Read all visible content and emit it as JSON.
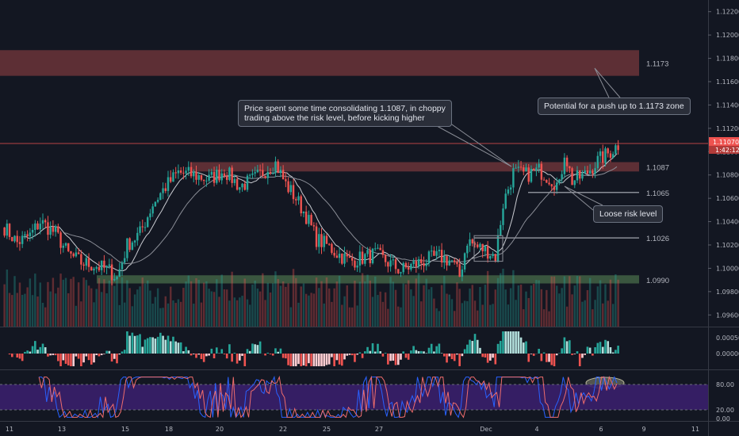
{
  "chart_data": {
    "type": "candlestick",
    "price_axis": {
      "ticks": [
        "1.12200",
        "1.12000",
        "1.11800",
        "1.11600",
        "1.11400",
        "1.11200",
        "1.11000",
        "1.10800",
        "1.10600",
        "1.10400",
        "1.10200",
        "1.10000",
        "1.09800",
        "1.09600"
      ],
      "current_price_label": "1.11070",
      "countdown_label": "1:42:12",
      "range": [
        1.095,
        1.123
      ]
    },
    "x_axis": {
      "ticks": [
        "11",
        "13",
        "15",
        "18",
        "20",
        "22",
        "25",
        "27",
        "Dec",
        "4",
        "6",
        "9",
        "11"
      ]
    },
    "levels": [
      {
        "label": "1.1173",
        "kind": "resistance-zone"
      },
      {
        "label": "1.1087",
        "kind": "risk-zone"
      },
      {
        "label": "1.1065",
        "kind": "line"
      },
      {
        "label": "1.1026",
        "kind": "line"
      },
      {
        "label": "1.0990",
        "kind": "support-zone"
      }
    ],
    "path_points": [
      {
        "x": 0,
        "y": 1.1035
      },
      {
        "x": 5,
        "y": 1.1022
      },
      {
        "x": 10,
        "y": 1.1028
      },
      {
        "x": 14,
        "y": 1.104
      },
      {
        "x": 20,
        "y": 1.103
      },
      {
        "x": 25,
        "y": 1.1012
      },
      {
        "x": 30,
        "y": 1.1005
      },
      {
        "x": 36,
        "y": 1.1002
      },
      {
        "x": 41,
        "y": 1.0998
      },
      {
        "x": 44,
        "y": 1.0992
      },
      {
        "x": 48,
        "y": 1.102
      },
      {
        "x": 53,
        "y": 1.103
      },
      {
        "x": 58,
        "y": 1.1055
      },
      {
        "x": 63,
        "y": 1.107
      },
      {
        "x": 68,
        "y": 1.1082
      },
      {
        "x": 74,
        "y": 1.108
      },
      {
        "x": 80,
        "y": 1.1076
      },
      {
        "x": 86,
        "y": 1.1084
      },
      {
        "x": 92,
        "y": 1.107
      },
      {
        "x": 98,
        "y": 1.1077
      },
      {
        "x": 103,
        "y": 1.1086
      },
      {
        "x": 106,
        "y": 1.109
      },
      {
        "x": 110,
        "y": 1.1072
      },
      {
        "x": 114,
        "y": 1.106
      },
      {
        "x": 118,
        "y": 1.1045
      },
      {
        "x": 122,
        "y": 1.1025
      },
      {
        "x": 126,
        "y": 1.102
      },
      {
        "x": 130,
        "y": 1.1013
      },
      {
        "x": 135,
        "y": 1.1006
      },
      {
        "x": 140,
        "y": 1.1009
      },
      {
        "x": 145,
        "y": 1.1012
      },
      {
        "x": 150,
        "y": 1.1005
      },
      {
        "x": 155,
        "y": 1.0998
      },
      {
        "x": 160,
        "y": 1.1003
      },
      {
        "x": 165,
        "y": 1.1007
      },
      {
        "x": 170,
        "y": 1.101
      },
      {
        "x": 175,
        "y": 1.1006
      },
      {
        "x": 178,
        "y": 1.0993
      },
      {
        "x": 181,
        "y": 1.1024
      },
      {
        "x": 185,
        "y": 1.1018
      },
      {
        "x": 189,
        "y": 1.1015
      },
      {
        "x": 192,
        "y": 1.101
      },
      {
        "x": 195,
        "y": 1.1055
      },
      {
        "x": 199,
        "y": 1.1082
      },
      {
        "x": 204,
        "y": 1.108
      },
      {
        "x": 209,
        "y": 1.1084
      },
      {
        "x": 214,
        "y": 1.1076
      },
      {
        "x": 217,
        "y": 1.107
      },
      {
        "x": 219,
        "y": 1.11
      },
      {
        "x": 222,
        "y": 1.1075
      },
      {
        "x": 227,
        "y": 1.108
      },
      {
        "x": 232,
        "y": 1.1092
      },
      {
        "x": 237,
        "y": 1.11
      },
      {
        "x": 240,
        "y": 1.1106
      }
    ],
    "oscillator_axis": {
      "ticks": [
        "0.00050",
        "0.00000"
      ]
    },
    "stoch_axis": {
      "ticks": [
        "80.00",
        "20.00",
        "0.00"
      ]
    }
  },
  "annotations": {
    "consolidation": "Price spent some time consolidating 1.1087, in choppy trading above the risk level, before kicking higher",
    "consolidation_line1": "Price spent some time consolidating 1.1087, in choppy",
    "consolidation_line2": "trading above the risk level, before kicking higher",
    "push_up": "Potential for a push up to 1.1173 zone",
    "risk_level": "Loose risk level"
  },
  "colors": {
    "background": "#131722",
    "bull": "#26a69a",
    "bear": "#ef5350",
    "resistance_zone": "#6b3438",
    "support_zone": "#3f5d42",
    "stoch_band": "#3a1f6b"
  }
}
